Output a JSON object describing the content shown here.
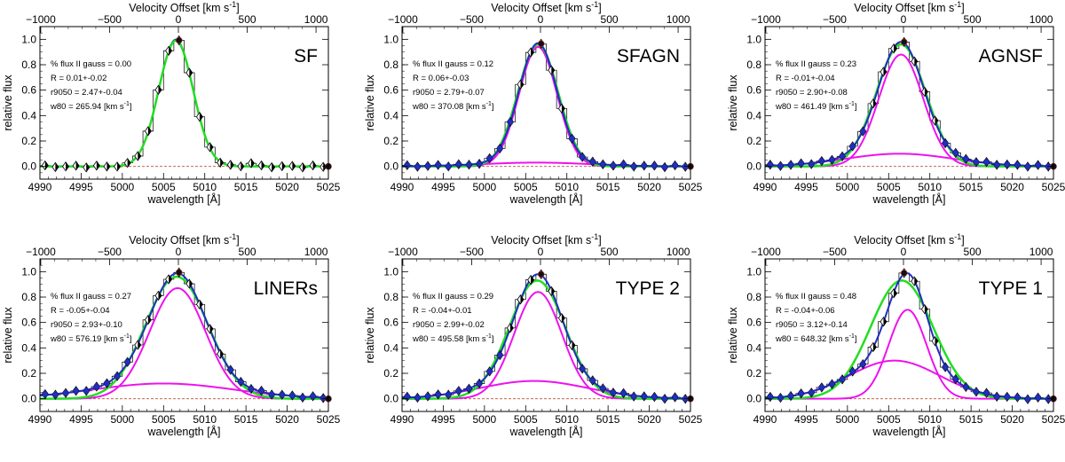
{
  "figure": {
    "x_label": "wavelength [Å]",
    "y_label": "relative flux",
    "top_label_prefix": "Velocity Offset [km s",
    "top_label_sup": "-1",
    "top_label_suffix": "]",
    "x_ticks": [
      4990,
      4995,
      5000,
      5005,
      5010,
      5015,
      5020,
      5025
    ],
    "y_ticks": [
      "0.0",
      "0.2",
      "0.4",
      "0.6",
      "0.8",
      "1.0"
    ],
    "top_ticks": [
      -1000,
      -500,
      0,
      500,
      1000
    ],
    "line_center_A": 5006.8,
    "colors": {
      "data": "#000000",
      "total_fit": "#1f2fbf",
      "single_fit": "#22dd22",
      "components": "#ee11ee",
      "zero_line": "#b5523a"
    }
  },
  "chart_data": [
    {
      "type": "line",
      "title": "SF",
      "xlabel": "wavelength [Å]",
      "ylabel": "relative flux",
      "xlim": [
        4990,
        5025
      ],
      "ylim": [
        -0.1,
        1.1
      ],
      "stats": [
        "% flux II gauss = 0.00",
        "R = 0.01+-0.02",
        "r9050 = 2.47+-0.04",
        "w80 = 265.94 [km s-1]"
      ],
      "stats_w80_value": "w80 = 265.94 [km s",
      "stats_w80_sup": "-1",
      "components": [
        {
          "amp": 1.0,
          "center": 5006.5,
          "sigma": 2.1
        }
      ],
      "single": {
        "amp": 0.99,
        "center": 5006.5,
        "sigma": 2.1
      },
      "show_components": false
    },
    {
      "type": "line",
      "title": "SFAGN",
      "xlabel": "wavelength [Å]",
      "ylabel": "relative flux",
      "xlim": [
        4990,
        5025
      ],
      "ylim": [
        -0.1,
        1.1
      ],
      "stats": [
        "% flux II gauss = 0.12",
        "R = 0.06+-0.03",
        "r9050 = 2.79+-0.07",
        "w80 = 370.08 [km s-1]"
      ],
      "stats_w80_value": "w80 = 370.08 [km s",
      "stats_w80_sup": "-1",
      "components": [
        {
          "amp": 0.94,
          "center": 5006.5,
          "sigma": 2.3
        },
        {
          "amp": 0.03,
          "center": 5006.3,
          "sigma": 6.5
        }
      ],
      "single": {
        "amp": 0.96,
        "center": 5006.5,
        "sigma": 2.45
      },
      "show_components": true
    },
    {
      "type": "line",
      "title": "AGNSF",
      "xlabel": "wavelength [Å]",
      "ylabel": "relative flux",
      "xlim": [
        4990,
        5025
      ],
      "ylim": [
        -0.1,
        1.1
      ],
      "stats": [
        "% flux II gauss = 0.23",
        "R = -0.01+-0.04",
        "r9050 = 2.90+-0.08",
        "w80 = 461.49 [km s-1]"
      ],
      "stats_w80_value": "w80 = 461.49 [km s",
      "stats_w80_sup": "-1",
      "components": [
        {
          "amp": 0.88,
          "center": 5006.5,
          "sigma": 2.7
        },
        {
          "amp": 0.1,
          "center": 5006.3,
          "sigma": 6.5
        }
      ],
      "single": {
        "amp": 0.96,
        "center": 5006.5,
        "sigma": 3.0
      },
      "show_components": true
    },
    {
      "type": "line",
      "title": "LINERs",
      "xlabel": "wavelength [Å]",
      "ylabel": "relative flux",
      "xlim": [
        4990,
        5025
      ],
      "ylim": [
        -0.1,
        1.1
      ],
      "stats": [
        "% flux II gauss = 0.27",
        "R = -0.05+-0.04",
        "r9050 = 2.93+-0.10",
        "w80 = 576.19 [km s-1]"
      ],
      "stats_w80_value": "w80 = 576.19 [km s",
      "stats_w80_sup": "-1",
      "components": [
        {
          "amp": 0.87,
          "center": 5006.7,
          "sigma": 3.4
        },
        {
          "amp": 0.12,
          "center": 5005.0,
          "sigma": 8.5
        }
      ],
      "single": {
        "amp": 0.96,
        "center": 5006.6,
        "sigma": 3.8
      },
      "show_components": true
    },
    {
      "type": "line",
      "title": "TYPE 2",
      "xlabel": "wavelength [Å]",
      "ylabel": "relative flux",
      "xlim": [
        4990,
        5025
      ],
      "ylim": [
        -0.1,
        1.1
      ],
      "stats": [
        "% flux II gauss = 0.29",
        "R = -0.04+-0.01",
        "r9050 = 2.99+-0.02",
        "w80 = 495.58 [km s-1]"
      ],
      "stats_w80_value": "w80 = 495.58 [km s",
      "stats_w80_sup": "-1",
      "components": [
        {
          "amp": 0.84,
          "center": 5006.5,
          "sigma": 2.9
        },
        {
          "amp": 0.14,
          "center": 5006.0,
          "sigma": 6.5
        }
      ],
      "single": {
        "amp": 0.93,
        "center": 5006.4,
        "sigma": 3.4
      },
      "show_components": true
    },
    {
      "type": "line",
      "title": "TYPE 1",
      "xlabel": "wavelength [Å]",
      "ylabel": "relative flux",
      "xlim": [
        4990,
        5025
      ],
      "ylim": [
        -0.1,
        1.1
      ],
      "stats": [
        "% flux II gauss = 0.48",
        "R = -0.04+-0.06",
        "r9050 = 3.12+-0.14",
        "w80 = 648.32 [km s-1]"
      ],
      "stats_w80_value": "w80 = 648.32 [km s",
      "stats_w80_sup": "-1",
      "components": [
        {
          "amp": 0.7,
          "center": 5007.3,
          "sigma": 2.3
        },
        {
          "amp": 0.3,
          "center": 5005.7,
          "sigma": 5.5
        }
      ],
      "single": {
        "amp": 0.93,
        "center": 5006.6,
        "sigma": 3.8
      },
      "show_components": true
    }
  ]
}
